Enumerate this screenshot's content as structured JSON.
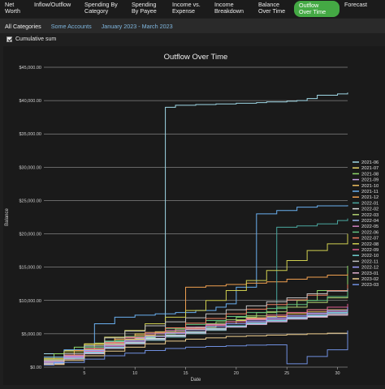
{
  "nav": {
    "tabs": [
      {
        "label": "Net\nWorth",
        "active": false
      },
      {
        "label": "Inflow/Outflow",
        "active": false
      },
      {
        "label": "Spending By\nCategory",
        "active": false
      },
      {
        "label": "Spending\nBy Payee",
        "active": false
      },
      {
        "label": "Income vs.\nExpense",
        "active": false
      },
      {
        "label": "Income\nBreakdown",
        "active": false
      },
      {
        "label": "Balance\nOver Time",
        "active": false
      },
      {
        "label": "Outflow\nOver Time",
        "active": true
      },
      {
        "label": "Forecast",
        "active": false
      }
    ]
  },
  "filters": {
    "categories": "All Categories",
    "accounts": "Some Accounts",
    "date_range": "January 2023 - March 2023"
  },
  "options": {
    "cumulative_label": "Cumulative sum",
    "cumulative_checked": true
  },
  "colors": {
    "accent": "#44a944",
    "link": "#7fb6de",
    "background": "#1f1f1f"
  },
  "chart_data": {
    "type": "line",
    "title": "Outflow Over Time",
    "xlabel": "Date",
    "ylabel": "Balance",
    "xlim": [
      1,
      31
    ],
    "ylim": [
      0,
      45000
    ],
    "x_ticks": [
      5,
      10,
      15,
      20,
      25,
      30
    ],
    "y_ticks": [
      0,
      5000,
      10000,
      15000,
      20000,
      25000,
      30000,
      35000,
      40000,
      45000
    ],
    "y_tick_labels": [
      "$0.00",
      "$5,000.00",
      "$10,000.00",
      "$15,000.00",
      "$20,000.00",
      "$25,000.00",
      "$30,000.00",
      "$35,000.00",
      "$40,000.00",
      "$45,000.00"
    ],
    "grid": true,
    "legend_position": "right",
    "series": [
      {
        "name": "2021-06",
        "color": "#9fd8e6",
        "x": [
          1,
          3,
          6,
          7,
          9,
          10,
          11,
          12,
          13,
          14,
          16,
          18,
          20,
          22,
          23,
          25,
          26,
          27,
          28,
          30,
          31
        ],
        "y": [
          2000,
          2500,
          3000,
          3800,
          4200,
          4300,
          4400,
          5000,
          39000,
          39300,
          39400,
          39500,
          39600,
          39700,
          39800,
          39900,
          40000,
          40300,
          40800,
          41000,
          41200
        ]
      },
      {
        "name": "2021-07",
        "color": "#e8d86a",
        "x": [
          1,
          3,
          5,
          8,
          10,
          12,
          14,
          16,
          18,
          20,
          21,
          23,
          25,
          27,
          29,
          31
        ],
        "y": [
          1500,
          2500,
          3500,
          4500,
          5000,
          5300,
          5600,
          6000,
          6500,
          7000,
          7400,
          7800,
          8200,
          8600,
          9000,
          9400
        ]
      },
      {
        "name": "2021-08",
        "color": "#8fd86a",
        "x": [
          1,
          2,
          4,
          6,
          8,
          10,
          12,
          14,
          16,
          18,
          20,
          22,
          24,
          26,
          28,
          31
        ],
        "y": [
          1200,
          2000,
          3000,
          3600,
          4000,
          4500,
          5000,
          5600,
          6000,
          6800,
          7500,
          8200,
          9000,
          10000,
          11500,
          15200
        ]
      },
      {
        "name": "2021-09",
        "color": "#c8a0e6",
        "x": [
          1,
          3,
          5,
          7,
          9,
          11,
          13,
          15,
          17,
          19,
          21,
          23,
          25,
          27,
          29,
          31
        ],
        "y": [
          1000,
          1800,
          2500,
          3200,
          3800,
          4300,
          4800,
          5300,
          5800,
          6200,
          6700,
          7100,
          7500,
          7800,
          8100,
          8400
        ]
      },
      {
        "name": "2021-10",
        "color": "#f0c060",
        "x": [
          1,
          3,
          5,
          7,
          9,
          11,
          13,
          15,
          17,
          19,
          21,
          23,
          25,
          27,
          29,
          31
        ],
        "y": [
          800,
          1600,
          2600,
          3500,
          4200,
          4700,
          5200,
          5700,
          6300,
          6800,
          7200,
          7600,
          8000,
          8300,
          8600,
          9000
        ]
      },
      {
        "name": "2021-11",
        "color": "#6ab0f0",
        "x": [
          1,
          3,
          5,
          6,
          8,
          10,
          12,
          14,
          16,
          18,
          19,
          20,
          22,
          24,
          26,
          28,
          31
        ],
        "y": [
          1500,
          2600,
          3200,
          6500,
          7500,
          7800,
          8000,
          8200,
          8500,
          9000,
          9500,
          12000,
          23000,
          23500,
          24000,
          24200,
          24300
        ]
      },
      {
        "name": "2021-12",
        "color": "#f0a050",
        "x": [
          1,
          4,
          6,
          8,
          10,
          12,
          14,
          15,
          17,
          19,
          21,
          23,
          25,
          27,
          29,
          31
        ],
        "y": [
          1200,
          2500,
          3500,
          4200,
          4800,
          5200,
          5800,
          12000,
          12200,
          12400,
          12600,
          12800,
          13200,
          13500,
          13800,
          14000
        ]
      },
      {
        "name": "2022-01",
        "color": "#4aa8a0",
        "x": [
          1,
          3,
          5,
          7,
          9,
          11,
          13,
          15,
          17,
          19,
          21,
          23,
          24,
          26,
          28,
          30,
          31
        ],
        "y": [
          1000,
          1500,
          2500,
          3000,
          3500,
          4000,
          4500,
          5000,
          5500,
          6000,
          6500,
          7500,
          21000,
          21200,
          21500,
          22000,
          22300
        ]
      },
      {
        "name": "2022-02",
        "color": "#e0e0e0",
        "x": [
          1,
          3,
          5,
          7,
          9,
          11,
          13,
          15,
          17,
          19,
          21,
          23,
          25,
          27,
          29,
          31
        ],
        "y": [
          700,
          1500,
          2300,
          3000,
          3700,
          4300,
          4800,
          5300,
          5800,
          6200,
          6600,
          7000,
          7300,
          7600,
          7900,
          8200
        ]
      },
      {
        "name": "2022-03",
        "color": "#b0d070",
        "x": [
          1,
          3,
          5,
          7,
          9,
          11,
          13,
          15,
          17,
          19,
          21,
          23,
          25,
          27,
          29,
          31
        ],
        "y": [
          900,
          1700,
          2600,
          3400,
          4100,
          4700,
          5300,
          5900,
          6500,
          7100,
          7700,
          8300,
          9000,
          9700,
          10400,
          11200
        ]
      },
      {
        "name": "2022-04",
        "color": "#9ab8f0",
        "x": [
          1,
          3,
          5,
          7,
          9,
          11,
          13,
          15,
          17,
          19,
          21,
          23,
          25,
          27,
          29,
          31
        ],
        "y": [
          600,
          1400,
          2200,
          3000,
          3600,
          4200,
          4700,
          5200,
          5700,
          6100,
          6500,
          6900,
          7300,
          7700,
          8100,
          8500
        ]
      },
      {
        "name": "2022-05",
        "color": "#d080c0",
        "x": [
          1,
          3,
          5,
          7,
          9,
          11,
          13,
          15,
          17,
          19,
          21,
          23,
          25,
          27,
          29,
          31
        ],
        "y": [
          800,
          1700,
          2700,
          3600,
          4400,
          5000,
          5500,
          6000,
          6400,
          6800,
          7100,
          7400,
          7700,
          8000,
          8300,
          8600
        ]
      },
      {
        "name": "2022-06",
        "color": "#60c080",
        "x": [
          1,
          3,
          5,
          7,
          9,
          11,
          13,
          15,
          17,
          19,
          21,
          23,
          25,
          27,
          29,
          31
        ],
        "y": [
          1100,
          2000,
          3000,
          3900,
          4600,
          5200,
          5800,
          6400,
          7000,
          7600,
          8200,
          8800,
          9400,
          10000,
          10600,
          11400
        ]
      },
      {
        "name": "2022-07",
        "color": "#f08060",
        "x": [
          1,
          3,
          5,
          7,
          9,
          11,
          13,
          15,
          17,
          19,
          21,
          23,
          25,
          27,
          29,
          31
        ],
        "y": [
          900,
          1800,
          2800,
          3700,
          4500,
          5200,
          5900,
          6600,
          7300,
          8000,
          8700,
          9400,
          10100,
          10800,
          11500,
          12400
        ]
      },
      {
        "name": "2022-08",
        "color": "#d0d050",
        "x": [
          1,
          3,
          5,
          7,
          9,
          11,
          13,
          15,
          17,
          19,
          21,
          23,
          25,
          27,
          29,
          31
        ],
        "y": [
          1300,
          2300,
          3400,
          4500,
          5500,
          6500,
          7500,
          8500,
          10000,
          11500,
          13000,
          14500,
          16000,
          17500,
          18500,
          20000
        ]
      },
      {
        "name": "2022-09",
        "color": "#e06090",
        "x": [
          1,
          3,
          5,
          7,
          9,
          11,
          13,
          15,
          17,
          19,
          21,
          23,
          25,
          27,
          29,
          31
        ],
        "y": [
          700,
          1500,
          2400,
          3200,
          4000,
          4600,
          5200,
          5800,
          6300,
          6800,
          7300,
          7800,
          8200,
          8600,
          9000,
          9500
        ]
      },
      {
        "name": "2022-10",
        "color": "#70d0d0",
        "x": [
          1,
          3,
          5,
          7,
          9,
          11,
          13,
          15,
          17,
          19,
          21,
          23,
          25,
          27,
          29,
          31
        ],
        "y": [
          600,
          1300,
          2100,
          2900,
          3600,
          4200,
          4700,
          5200,
          5700,
          6200,
          6600,
          7000,
          7400,
          7800,
          8200,
          8600
        ]
      },
      {
        "name": "2022-11",
        "color": "#c0c0c0",
        "x": [
          1,
          3,
          5,
          7,
          9,
          11,
          13,
          15,
          17,
          19,
          21,
          23,
          25,
          27,
          29,
          31
        ],
        "y": [
          1000,
          2000,
          3200,
          4400,
          5400,
          6200,
          6800,
          7400,
          8000,
          8600,
          9200,
          9800,
          10400,
          11000,
          11400,
          11800
        ]
      },
      {
        "name": "2022-12",
        "color": "#a0a0ff",
        "x": [
          1,
          3,
          5,
          7,
          9,
          11,
          13,
          15,
          17,
          19,
          21,
          23,
          25,
          27,
          29,
          31
        ],
        "y": [
          800,
          1600,
          2500,
          3300,
          4000,
          4600,
          5100,
          5600,
          6100,
          6500,
          6900,
          7300,
          7700,
          8100,
          8500,
          9000
        ]
      },
      {
        "name": "2023-01",
        "color": "#e0b0d0",
        "x": [
          1,
          3,
          5,
          7,
          9,
          11,
          13,
          15,
          17,
          19,
          21,
          23,
          25,
          27,
          29,
          31
        ],
        "y": [
          500,
          1200,
          2000,
          2800,
          3500,
          4100,
          4600,
          5100,
          5600,
          6000,
          6400,
          6800,
          7200,
          7500,
          7800,
          8100
        ]
      },
      {
        "name": "2023-02",
        "color": "#f0d090",
        "x": [
          1,
          3,
          5,
          7,
          9,
          11,
          13,
          15,
          17,
          19,
          21,
          23,
          25,
          27,
          29,
          31
        ],
        "y": [
          400,
          1000,
          1700,
          2400,
          3000,
          3500,
          3900,
          4200,
          4400,
          4600,
          4700,
          4800,
          4900,
          5000,
          5100,
          5200
        ]
      },
      {
        "name": "2023-03",
        "color": "#7090e0",
        "x": [
          1,
          2,
          5,
          7,
          9,
          11,
          13,
          15,
          17,
          19,
          21,
          23,
          25,
          27,
          29,
          31
        ],
        "y": [
          300,
          700,
          1200,
          1700,
          2100,
          2500,
          2800,
          3000,
          3100,
          3200,
          3300,
          3350,
          500,
          1600,
          2600,
          5500
        ]
      }
    ]
  }
}
